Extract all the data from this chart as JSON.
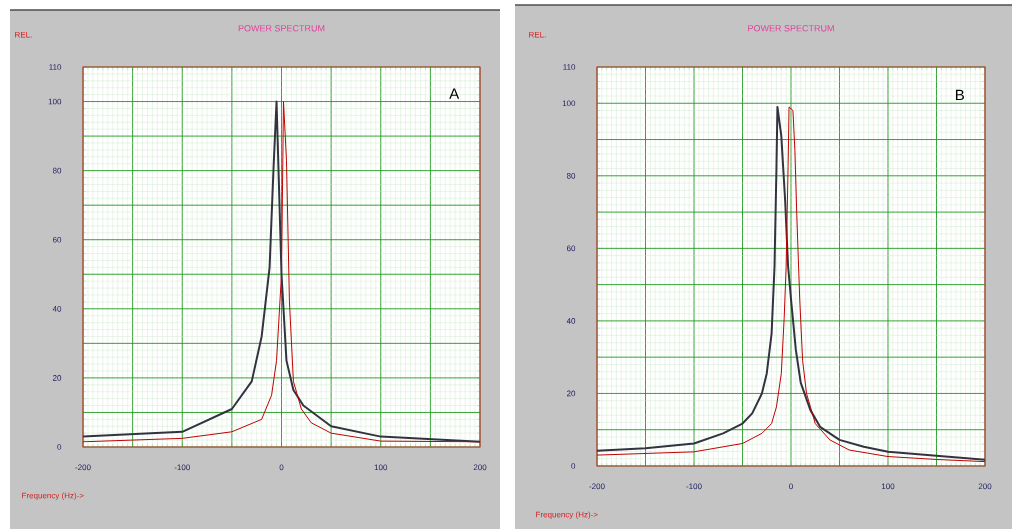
{
  "chart_data": [
    {
      "type": "line",
      "title": "POWER SPECTRUM",
      "xlabel": "Frequency (Hz)->",
      "ylabel": "REL.",
      "annotations": [
        "A"
      ],
      "xlim": [
        -200,
        200
      ],
      "ylim": [
        0,
        110
      ],
      "xticks": [
        -200,
        {
          "value": -150,
          "label": null
        },
        -100,
        {
          "value": -50,
          "label": null
        },
        0,
        {
          "value": 50,
          "label": null
        },
        100,
        {
          "value": 150,
          "label": null
        },
        200
      ],
      "yticks": [
        0,
        {
          "value": 10,
          "label": null
        },
        20,
        {
          "value": 30,
          "label": null
        },
        40,
        {
          "value": 50,
          "label": null
        },
        60,
        {
          "value": 70,
          "label": null
        },
        80,
        {
          "value": 90,
          "label": null
        },
        100,
        110
      ],
      "grid": true,
      "marker": "none",
      "series": [
        {
          "color": "#333340",
          "x": [
            -200,
            -100,
            -50,
            -30,
            -20,
            -12,
            -8,
            -5,
            0,
            5,
            12,
            22,
            50,
            100,
            200
          ],
          "values": [
            3,
            4.4,
            11,
            19,
            32,
            52,
            81,
            100,
            50,
            25,
            16.5,
            12,
            6,
            3,
            1.5
          ]
        },
        {
          "color": "#c00000",
          "x": [
            -200,
            -100,
            -50,
            -20,
            -10,
            -5,
            0,
            2,
            5,
            8,
            12,
            20,
            30,
            50,
            100,
            200
          ],
          "values": [
            1.5,
            2.5,
            4.4,
            8,
            15,
            25,
            50,
            100,
            83,
            42,
            19,
            11,
            7,
            4,
            1.7,
            1.5
          ]
        }
      ]
    },
    {
      "type": "line",
      "title": "POWER SPECTRUM",
      "xlabel": "Frequency (Hz)->",
      "ylabel": "REL.",
      "annotations": [
        "B"
      ],
      "xlim": [
        -200,
        200
      ],
      "ylim": [
        0,
        110
      ],
      "xticks": [
        -200,
        {
          "value": -150,
          "label": null
        },
        -100,
        {
          "value": -50,
          "label": null
        },
        0,
        {
          "value": 50,
          "label": null
        },
        100,
        {
          "value": 150,
          "label": null
        },
        200
      ],
      "yticks": [
        0,
        {
          "value": 10,
          "label": null
        },
        20,
        {
          "value": 30,
          "label": null
        },
        40,
        {
          "value": 50,
          "label": null
        },
        60,
        {
          "value": 70,
          "label": null
        },
        80,
        {
          "value": 90,
          "label": null
        },
        100,
        110
      ],
      "grid": true,
      "marker": "none",
      "series": [
        {
          "color": "#333340",
          "x": [
            -200,
            -150,
            -100,
            -70,
            -50,
            -40,
            -30,
            -25,
            -20,
            -17,
            -15,
            -14,
            -10,
            -6,
            -3,
            0,
            5,
            10,
            20,
            30,
            50,
            75,
            100,
            150,
            200
          ],
          "values": [
            4.2,
            4.9,
            6.2,
            9,
            11.7,
            14.5,
            20,
            25.5,
            36.5,
            55,
            82,
            99,
            91,
            73,
            55,
            46,
            32,
            23,
            15.4,
            10.8,
            7.2,
            5.3,
            3.9,
            2.8,
            1.7
          ]
        },
        {
          "color": "#c00000",
          "x": [
            -200,
            -100,
            -50,
            -30,
            -20,
            -15,
            -10,
            -7,
            -5,
            -3,
            -2,
            2,
            4,
            6,
            9,
            12,
            16,
            25,
            40,
            60,
            100,
            150,
            200
          ],
          "values": [
            3,
            3.9,
            6.2,
            9,
            11.7,
            16.3,
            25.5,
            41,
            55,
            82.6,
            99,
            98,
            87,
            69,
            46,
            29,
            20,
            11.7,
            7.2,
            4.4,
            2.6,
            1.8,
            1.2
          ]
        }
      ]
    }
  ]
}
